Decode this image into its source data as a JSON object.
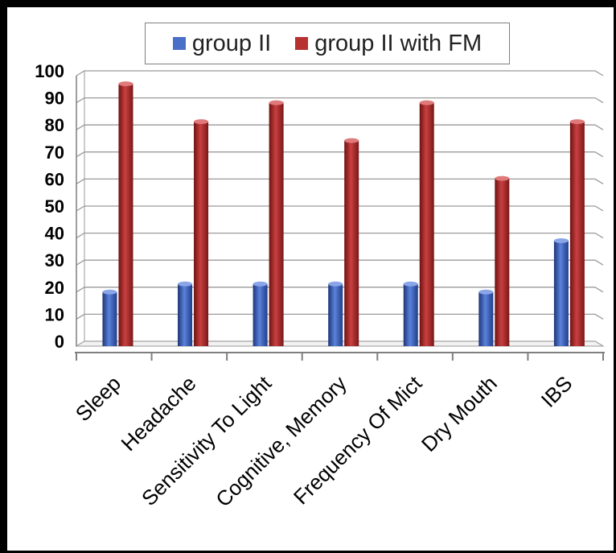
{
  "chart_data": {
    "type": "bar",
    "categories": [
      "Sleep",
      "Headache",
      "Sensitivity To Light",
      "Cognitive, Memory",
      "Frequency Of Mict",
      "Dry Mouth",
      "IBS"
    ],
    "series": [
      {
        "name": "group II",
        "values": [
          20,
          23,
          23,
          23,
          23,
          20,
          39
        ],
        "color": "#4a6fc8"
      },
      {
        "name": "group II with FM",
        "values": [
          97,
          83,
          90,
          76,
          90,
          62,
          83
        ],
        "color": "#b83131"
      }
    ],
    "ylim": [
      0,
      100
    ],
    "yticks": [
      "0",
      "10",
      "20",
      "30",
      "40",
      "50",
      "60",
      "70",
      "80",
      "90",
      "100"
    ],
    "grid": true,
    "legend_position": "top",
    "style": "3d-cylinder"
  }
}
